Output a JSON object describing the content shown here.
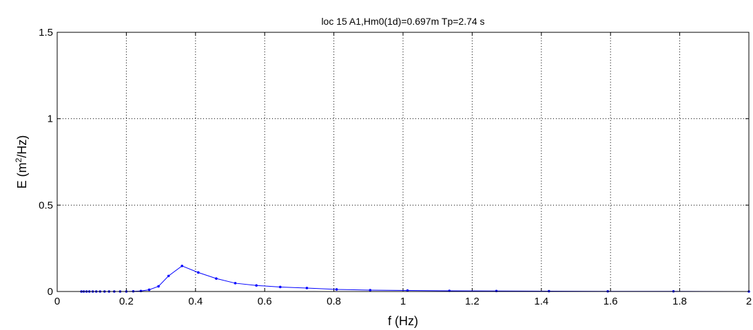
{
  "chart_data": {
    "type": "line",
    "title": "loc 15 A1,Hm0(1d)=0.697m Tp=2.74 s",
    "xlabel": "f (Hz)",
    "ylabel_main": "E (m",
    "ylabel_sup": "2",
    "ylabel_tail": "/Hz)",
    "xlim": [
      0,
      2
    ],
    "ylim": [
      0,
      1.5
    ],
    "xticks": [
      0,
      0.2,
      0.4,
      0.6,
      0.8,
      1,
      1.2,
      1.4,
      1.6,
      1.8,
      2
    ],
    "xtick_labels": [
      "0",
      "0.2",
      "0.4",
      "0.6",
      "0.8",
      "1",
      "1.2",
      "1.4",
      "1.6",
      "1.8",
      "2"
    ],
    "yticks": [
      0,
      0.5,
      1,
      1.5
    ],
    "ytick_labels": [
      "0",
      "0.5",
      "1",
      "1.5"
    ],
    "grid": true,
    "series_color": "#0000ff",
    "series": [
      {
        "x": [
          0.07,
          0.077,
          0.085,
          0.093,
          0.103,
          0.113,
          0.124,
          0.137,
          0.15,
          0.165,
          0.182,
          0.2,
          0.22,
          0.242,
          0.266,
          0.293,
          0.322,
          0.361,
          0.408,
          0.46,
          0.515,
          0.576,
          0.645,
          0.722,
          0.808,
          0.905,
          1.013,
          1.134,
          1.27,
          1.422,
          1.592,
          1.782,
          2.0
        ],
        "y": [
          0,
          0,
          0,
          0,
          0,
          0,
          0,
          0,
          0,
          0,
          0,
          0,
          0.001,
          0.003,
          0.01,
          0.03,
          0.09,
          0.148,
          0.11,
          0.075,
          0.048,
          0.035,
          0.026,
          0.02,
          0.012,
          0.008,
          0.006,
          0.004,
          0.003,
          0.002,
          0.001,
          0.001,
          0.0
        ]
      }
    ]
  }
}
